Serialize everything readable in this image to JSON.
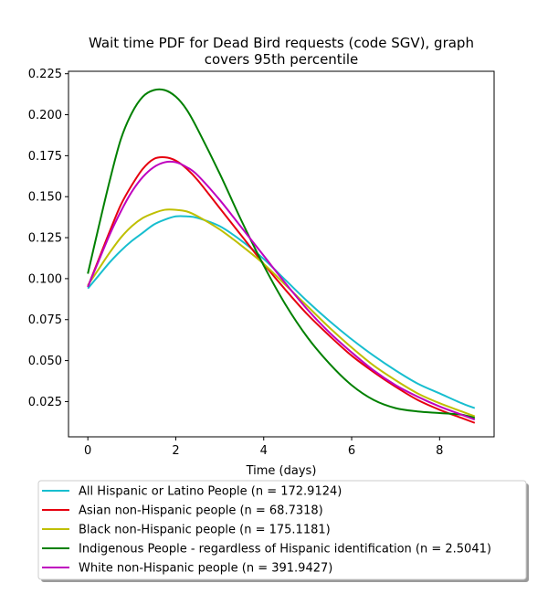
{
  "chart_data": {
    "type": "line",
    "title": "Wait time PDF for Dead Bird  requests (code SGV), graph covers 95th percentile",
    "title_lines": [
      "Wait time PDF for Dead Bird  requests (code SGV), graph",
      "covers 95th percentile"
    ],
    "xlabel": "Time (days)",
    "ylabel": "",
    "xlim": [
      -0.44,
      9.24
    ],
    "ylim": [
      0.0035,
      0.2265
    ],
    "xticks": [
      0,
      2,
      4,
      6,
      8
    ],
    "yticks": [
      0.025,
      0.05,
      0.075,
      0.1,
      0.125,
      0.15,
      0.175,
      0.2,
      0.225
    ],
    "ytick_labels": [
      "0.025",
      "0.050",
      "0.075",
      "0.100",
      "0.125",
      "0.150",
      "0.175",
      "0.200",
      "0.225"
    ],
    "grid": false,
    "legend_position": "below",
    "x": [
      0,
      0.25,
      0.5,
      0.75,
      1.0,
      1.25,
      1.5,
      1.75,
      2.0,
      2.25,
      2.5,
      3.0,
      3.5,
      4.0,
      4.5,
      5.0,
      5.5,
      6.0,
      6.5,
      7.0,
      7.5,
      8.0,
      8.5,
      8.8
    ],
    "series": [
      {
        "name": "All Hispanic or Latino People (n = 172.9124)",
        "color": "#17becf",
        "values": [
          0.094,
          0.102,
          0.11,
          0.117,
          0.123,
          0.128,
          0.133,
          0.136,
          0.138,
          0.138,
          0.137,
          0.132,
          0.123,
          0.112,
          0.099,
          0.086,
          0.074,
          0.063,
          0.053,
          0.044,
          0.036,
          0.03,
          0.024,
          0.021
        ]
      },
      {
        "name": "Asian non-Hispanic people (n = 68.7318)",
        "color": "#e6000f",
        "values": [
          0.095,
          0.112,
          0.129,
          0.145,
          0.157,
          0.167,
          0.173,
          0.174,
          0.172,
          0.167,
          0.16,
          0.143,
          0.126,
          0.109,
          0.093,
          0.078,
          0.065,
          0.053,
          0.043,
          0.034,
          0.026,
          0.02,
          0.015,
          0.012
        ]
      },
      {
        "name": "Black non-Hispanic people (n = 175.1181)",
        "color": "#bfbf00",
        "values": [
          0.096,
          0.106,
          0.116,
          0.125,
          0.132,
          0.137,
          0.14,
          0.142,
          0.142,
          0.141,
          0.138,
          0.13,
          0.12,
          0.109,
          0.096,
          0.083,
          0.07,
          0.058,
          0.047,
          0.038,
          0.03,
          0.024,
          0.019,
          0.016
        ]
      },
      {
        "name": "Indigenous People - regardless of Hispanic identification (n = 2.5041)",
        "color": "#008000",
        "values": [
          0.103,
          0.132,
          0.16,
          0.185,
          0.201,
          0.211,
          0.215,
          0.215,
          0.211,
          0.203,
          0.191,
          0.164,
          0.135,
          0.108,
          0.084,
          0.064,
          0.048,
          0.035,
          0.026,
          0.021,
          0.019,
          0.018,
          0.017,
          0.015
        ]
      },
      {
        "name": "White non-Hispanic people (n = 391.9427)",
        "color": "#bf00bf",
        "values": [
          0.095,
          0.111,
          0.127,
          0.141,
          0.153,
          0.162,
          0.168,
          0.171,
          0.171,
          0.168,
          0.163,
          0.148,
          0.131,
          0.114,
          0.097,
          0.081,
          0.067,
          0.055,
          0.044,
          0.035,
          0.028,
          0.022,
          0.017,
          0.014
        ]
      }
    ]
  }
}
